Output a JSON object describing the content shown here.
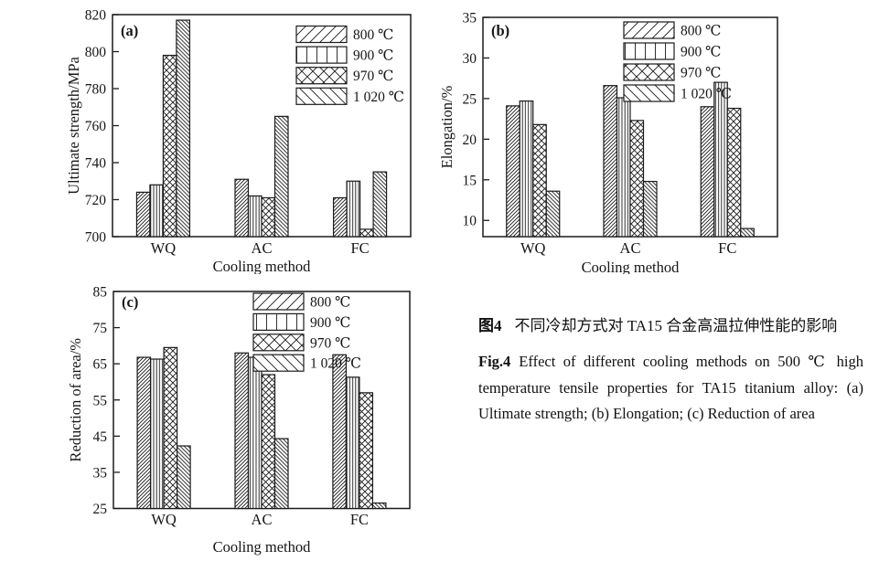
{
  "figure": {
    "ink_color": "#1a1a1a",
    "background_color": "#ffffff"
  },
  "chart_data": [
    {
      "type": "bar",
      "panel": "(a)",
      "title": "",
      "xlabel": "Cooling method",
      "ylabel": "Ultimate strength/MPa",
      "categories": [
        "WQ",
        "AC",
        "FC"
      ],
      "series": [
        {
          "name": "800 ℃",
          "hatch": "diagonal-up",
          "values": [
            724,
            731,
            721
          ]
        },
        {
          "name": "900 ℃",
          "hatch": "vertical-lines",
          "values": [
            728,
            722,
            730
          ]
        },
        {
          "name": "970 ℃",
          "hatch": "crosshatch",
          "values": [
            798,
            721,
            704
          ]
        },
        {
          "name": "1 020 ℃",
          "hatch": "diagonal-down",
          "values": [
            817,
            765,
            735
          ]
        }
      ],
      "ylim": [
        700,
        820
      ],
      "yticks": [
        700,
        720,
        740,
        760,
        780,
        800,
        820
      ],
      "legend_position": "upper-right-inside",
      "grid": false
    },
    {
      "type": "bar",
      "panel": "(b)",
      "title": "",
      "xlabel": "Cooling method",
      "ylabel": "Elongation/%",
      "categories": [
        "WQ",
        "AC",
        "FC"
      ],
      "series": [
        {
          "name": "800 ℃",
          "hatch": "diagonal-up",
          "values": [
            24.1,
            26.6,
            24.0
          ]
        },
        {
          "name": "900 ℃",
          "hatch": "vertical-lines",
          "values": [
            24.7,
            25.1,
            27.0
          ]
        },
        {
          "name": "970 ℃",
          "hatch": "crosshatch",
          "values": [
            21.8,
            22.3,
            23.8
          ]
        },
        {
          "name": "1 020 ℃",
          "hatch": "diagonal-down",
          "values": [
            13.6,
            14.8,
            9.0
          ]
        }
      ],
      "ylim": [
        8,
        35
      ],
      "yticks": [
        10,
        15,
        20,
        25,
        30,
        35
      ],
      "legend_position": "upper-center-inside",
      "grid": false
    },
    {
      "type": "bar",
      "panel": "(c)",
      "title": "",
      "xlabel": "Cooling method",
      "ylabel": "Reduction of area/%",
      "categories": [
        "WQ",
        "AC",
        "FC"
      ],
      "series": [
        {
          "name": "800 ℃",
          "hatch": "diagonal-up",
          "values": [
            66.8,
            68.0,
            67.5
          ]
        },
        {
          "name": "900 ℃",
          "hatch": "vertical-lines",
          "values": [
            66.3,
            66.8,
            61.3
          ]
        },
        {
          "name": "970 ℃",
          "hatch": "crosshatch",
          "values": [
            69.5,
            62.0,
            57.0
          ]
        },
        {
          "name": "1 020 ℃",
          "hatch": "diagonal-down",
          "values": [
            42.3,
            44.3,
            26.5
          ]
        }
      ],
      "ylim": [
        25,
        85
      ],
      "yticks": [
        25,
        35,
        45,
        55,
        65,
        75,
        85
      ],
      "legend_position": "upper-center-inside",
      "grid": false
    }
  ],
  "caption": {
    "zh_label": "图4",
    "zh_text": "不同冷却方式对 TA15 合金高温拉伸性能的影响",
    "en_label": "Fig.4",
    "en_text": "Effect of different cooling methods on 500 ℃ high temperature tensile properties for TA15 titanium alloy: (a) Ultimate strength; (b) Elongation; (c) Reduction of area"
  }
}
